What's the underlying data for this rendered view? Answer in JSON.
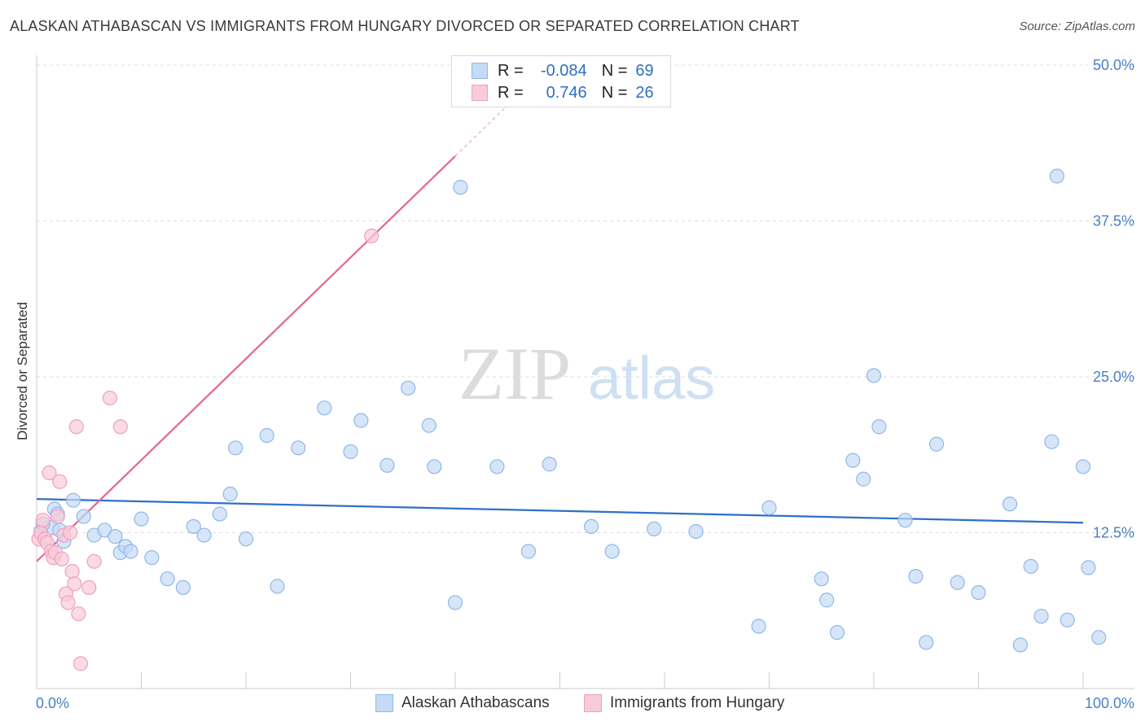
{
  "title": "ALASKAN ATHABASCAN VS IMMIGRANTS FROM HUNGARY DIVORCED OR SEPARATED CORRELATION CHART",
  "source": "Source: ZipAtlas.com",
  "watermark": {
    "zip": "ZIP",
    "atlas": "atlas"
  },
  "colors": {
    "blue": "#8fb8e8",
    "blue_fill": "#c5daf5",
    "blue_line": "#2f6fc8",
    "pink": "#f0a0bc",
    "pink_fill": "#f8cbd9",
    "pink_line": "#e36690",
    "tick": "#4a7fc4",
    "grid": "#dddddd"
  },
  "legend": {
    "rows": [
      {
        "r_label": "R =",
        "r_value": "-0.084",
        "n_label": "N =",
        "n_value": "69"
      },
      {
        "r_label": "R =",
        "r_value": "0.746",
        "n_label": "N =",
        "n_value": "26"
      }
    ]
  },
  "bottom_legend": [
    {
      "label": "Alaskan Athabascans"
    },
    {
      "label": "Immigrants from Hungary"
    }
  ],
  "chart_data": {
    "type": "scatter",
    "title": "ALASKAN ATHABASCAN VS IMMIGRANTS FROM HUNGARY DIVORCED OR SEPARATED CORRELATION CHART",
    "xlabel": "",
    "ylabel": "Divorced or Separated",
    "xlim": [
      0,
      100
    ],
    "ylim": [
      0,
      50
    ],
    "x_tick_labels": [
      "0.0%",
      "100.0%"
    ],
    "y_ticks": [
      12.5,
      25.0,
      37.5,
      50.0
    ],
    "y_tick_labels": [
      "12.5%",
      "25.0%",
      "37.5%",
      "50.0%"
    ],
    "series": [
      {
        "name": "Alaskan Athabascans",
        "R": -0.084,
        "N": 69,
        "trend": {
          "x0": 0,
          "y0": 15.2,
          "x1": 100,
          "y1": 13.3
        },
        "points": [
          [
            0.4,
            12.6
          ],
          [
            1.5,
            12.9
          ],
          [
            1.7,
            14.4
          ],
          [
            2.0,
            14.0
          ],
          [
            2.2,
            12.7
          ],
          [
            3.5,
            15.1
          ],
          [
            4.5,
            13.8
          ],
          [
            5.5,
            12.3
          ],
          [
            6.5,
            12.7
          ],
          [
            7.5,
            12.2
          ],
          [
            8.0,
            10.9
          ],
          [
            8.5,
            11.4
          ],
          [
            9.0,
            11.0
          ],
          [
            10.0,
            13.6
          ],
          [
            11.0,
            10.5
          ],
          [
            12.5,
            8.8
          ],
          [
            14.0,
            8.1
          ],
          [
            15.0,
            13.0
          ],
          [
            16.0,
            12.3
          ],
          [
            17.5,
            14.0
          ],
          [
            18.5,
            15.6
          ],
          [
            19.0,
            19.3
          ],
          [
            20.0,
            12.0
          ],
          [
            22.0,
            20.3
          ],
          [
            23.0,
            8.2
          ],
          [
            25.0,
            19.3
          ],
          [
            27.5,
            22.5
          ],
          [
            30.0,
            19.0
          ],
          [
            31.0,
            21.5
          ],
          [
            33.5,
            17.9
          ],
          [
            35.5,
            24.1
          ],
          [
            37.5,
            21.1
          ],
          [
            38.0,
            17.8
          ],
          [
            40.0,
            6.9
          ],
          [
            40.5,
            40.2
          ],
          [
            44.0,
            17.8
          ],
          [
            47.0,
            11.0
          ],
          [
            49.0,
            18.0
          ],
          [
            53.0,
            13.0
          ],
          [
            55.0,
            11.0
          ],
          [
            59.0,
            12.8
          ],
          [
            63.0,
            12.6
          ],
          [
            69.0,
            5.0
          ],
          [
            70.0,
            14.5
          ],
          [
            75.0,
            8.8
          ],
          [
            75.5,
            7.1
          ],
          [
            76.5,
            4.5
          ],
          [
            78.0,
            18.3
          ],
          [
            79.0,
            16.8
          ],
          [
            80.0,
            25.1
          ],
          [
            80.5,
            21.0
          ],
          [
            83.0,
            13.5
          ],
          [
            84.0,
            9.0
          ],
          [
            85.0,
            3.7
          ],
          [
            86.0,
            19.6
          ],
          [
            88.0,
            8.5
          ],
          [
            90.0,
            7.7
          ],
          [
            93.0,
            14.8
          ],
          [
            94.0,
            3.5
          ],
          [
            95.0,
            9.8
          ],
          [
            96.0,
            5.8
          ],
          [
            97.0,
            19.8
          ],
          [
            97.5,
            41.1
          ],
          [
            98.5,
            5.5
          ],
          [
            100.0,
            17.8
          ],
          [
            100.5,
            9.7
          ],
          [
            101.5,
            4.1
          ],
          [
            0.6,
            13.2
          ],
          [
            2.6,
            11.8
          ]
        ]
      },
      {
        "name": "Immigrants from Hungary",
        "R": 0.746,
        "N": 26,
        "trend": {
          "x0": 0,
          "y0": 10.2,
          "x1": 40,
          "y1": 42.7
        },
        "trend_dashed": {
          "x0": 40,
          "y0": 42.7,
          "x1": 48,
          "y1": 49.2
        },
        "points": [
          [
            0.2,
            12.0
          ],
          [
            0.4,
            12.5
          ],
          [
            0.6,
            13.5
          ],
          [
            0.8,
            12.0
          ],
          [
            1.0,
            11.7
          ],
          [
            1.2,
            17.3
          ],
          [
            1.4,
            11.0
          ],
          [
            1.6,
            10.5
          ],
          [
            1.8,
            10.9
          ],
          [
            2.0,
            13.8
          ],
          [
            2.2,
            16.6
          ],
          [
            2.4,
            10.4
          ],
          [
            2.6,
            12.3
          ],
          [
            2.8,
            7.6
          ],
          [
            3.0,
            6.9
          ],
          [
            3.2,
            12.5
          ],
          [
            3.4,
            9.4
          ],
          [
            3.6,
            8.4
          ],
          [
            3.8,
            21.0
          ],
          [
            4.0,
            6.0
          ],
          [
            4.2,
            2.0
          ],
          [
            5.0,
            8.1
          ],
          [
            5.5,
            10.2
          ],
          [
            7.0,
            23.3
          ],
          [
            8.0,
            21.0
          ],
          [
            32.0,
            36.3
          ]
        ]
      }
    ]
  }
}
